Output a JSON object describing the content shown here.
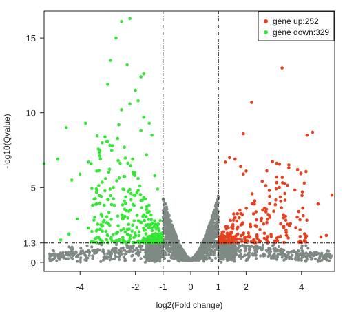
{
  "chart_data": {
    "type": "scatter",
    "xlabel": "log2(Fold change)",
    "ylabel": "-log10(Qvalue)",
    "xlim": [
      -5.3,
      5.2
    ],
    "ylim": [
      -0.6,
      16.8
    ],
    "x_ticks": [
      -4,
      -2,
      -1,
      0,
      1,
      2,
      4
    ],
    "x_tick_labels": [
      "-4",
      "-2",
      "-1",
      "0",
      "1",
      "2",
      "4"
    ],
    "y_ticks": [
      0,
      1.3,
      5,
      10,
      15
    ],
    "y_tick_labels": [
      "0",
      "1.3",
      "5",
      "10",
      "15"
    ],
    "thresholds": {
      "x": [
        -1,
        1
      ],
      "y": 1.3
    },
    "grid": false,
    "legend_position": "top-right",
    "colors": {
      "up": "#e8401c",
      "down": "#33e833",
      "not_significant": "#7f8a84"
    },
    "series": [
      {
        "name": "gene up:252",
        "key": "up",
        "points": [
          [
            3.3,
            13.0
          ],
          [
            2.2,
            10.7
          ],
          [
            4.4,
            8.7
          ],
          [
            4.2,
            8.5
          ],
          [
            1.9,
            8.6
          ],
          [
            1.4,
            7.0
          ],
          [
            1.6,
            6.9
          ],
          [
            1.25,
            6.7
          ],
          [
            1.8,
            6.4
          ],
          [
            2.0,
            6.1
          ],
          [
            1.9,
            5.9
          ],
          [
            3.1,
            5.7
          ],
          [
            4.1,
            5.3
          ],
          [
            5.1,
            4.5
          ],
          [
            3.4,
            4.6
          ],
          [
            2.3,
            3.9
          ],
          [
            4.6,
            3.9
          ],
          [
            2.6,
            3.5
          ],
          [
            3.9,
            3.4
          ],
          [
            2.8,
            3.2
          ],
          [
            1.6,
            3.0
          ],
          [
            4.9,
            1.8
          ],
          [
            4.7,
            1.7
          ],
          [
            3.6,
            2.6
          ],
          [
            2.5,
            2.2
          ]
        ]
      },
      {
        "name": "gene down:329",
        "key": "down",
        "points": [
          [
            -2.2,
            16.3
          ],
          [
            -2.5,
            16.1
          ],
          [
            -2.7,
            15.0
          ],
          [
            -2.9,
            13.5
          ],
          [
            -2.3,
            13.2
          ],
          [
            -1.7,
            12.6
          ],
          [
            -1.8,
            12.4
          ],
          [
            -3.0,
            11.9
          ],
          [
            -2.0,
            11.5
          ],
          [
            -1.9,
            10.8
          ],
          [
            -2.5,
            10.2
          ],
          [
            -2.2,
            10.6
          ],
          [
            -1.7,
            9.7
          ],
          [
            -1.5,
            9.3
          ],
          [
            -2.6,
            9.2
          ],
          [
            -4.5,
            9.0
          ],
          [
            -3.8,
            9.3
          ],
          [
            -1.8,
            8.8
          ],
          [
            -3.2,
            8.0
          ],
          [
            -3.0,
            8.1
          ],
          [
            -1.4,
            8.5
          ],
          [
            -2.4,
            7.7
          ],
          [
            -3.3,
            7.5
          ],
          [
            -4.8,
            6.9
          ],
          [
            -5.3,
            6.6
          ],
          [
            -3.6,
            6.6
          ],
          [
            -3.7,
            6.7
          ],
          [
            -2.1,
            6.9
          ],
          [
            -1.6,
            7.2
          ],
          [
            -4.0,
            5.9
          ],
          [
            -4.3,
            5.5
          ],
          [
            -2.8,
            5.0
          ],
          [
            -1.9,
            5.6
          ],
          [
            -1.3,
            5.8
          ],
          [
            -3.4,
            3.9
          ],
          [
            -3.0,
            4.2
          ],
          [
            -2.4,
            4.1
          ],
          [
            -1.2,
            4.9
          ],
          [
            -1.5,
            3.4
          ],
          [
            -4.1,
            2.9
          ],
          [
            -3.7,
            2.3
          ],
          [
            -4.4,
            1.9
          ],
          [
            -4.7,
            1.5
          ],
          [
            -1.1,
            2.8
          ],
          [
            -2.1,
            2.5
          ]
        ]
      },
      {
        "key": "not_significant",
        "points": [
          [
            -0.9,
            4.6
          ],
          [
            0.9,
            4.2
          ],
          [
            -0.95,
            3.5
          ],
          [
            0.95,
            3.3
          ],
          [
            -0.8,
            2.6
          ],
          [
            0.8,
            2.4
          ],
          [
            -0.6,
            1.6
          ],
          [
            0.6,
            1.5
          ],
          [
            -0.4,
            0.9
          ],
          [
            0.4,
            0.8
          ],
          [
            0.0,
            0.0
          ],
          [
            -2.2,
            1.0
          ],
          [
            2.3,
            1.0
          ],
          [
            -3.6,
            0.6
          ],
          [
            3.7,
            0.5
          ],
          [
            -4.9,
            0.2
          ],
          [
            5.0,
            0.3
          ]
        ]
      }
    ]
  }
}
